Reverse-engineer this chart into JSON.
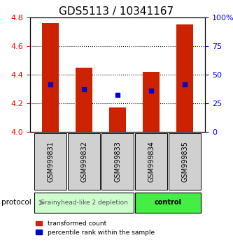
{
  "title": "GDS5113 / 10341167",
  "samples": [
    "GSM999831",
    "GSM999832",
    "GSM999833",
    "GSM999834",
    "GSM999835"
  ],
  "bar_bottoms": [
    4.0,
    4.0,
    4.0,
    4.0,
    4.0
  ],
  "bar_tops": [
    4.76,
    4.45,
    4.17,
    4.42,
    4.75
  ],
  "percentile_y": [
    4.33,
    4.3,
    4.26,
    4.29,
    4.33
  ],
  "percentile_x_offset": [
    0,
    0,
    0,
    0,
    0
  ],
  "ylim": [
    4.0,
    4.8
  ],
  "yticks": [
    4.0,
    4.2,
    4.4,
    4.6,
    4.8
  ],
  "right_yticks": [
    0,
    25,
    50,
    75,
    100
  ],
  "right_ytick_labels": [
    "0",
    "25",
    "50",
    "75",
    "100%"
  ],
  "bar_color": "#cc2200",
  "percentile_color": "#0000cc",
  "group1_samples": [
    0,
    1,
    2
  ],
  "group2_samples": [
    3,
    4
  ],
  "group1_label": "Grainyhead-like 2 depletion",
  "group2_label": "control",
  "group1_bg": "#ccffcc",
  "group2_bg": "#44ee44",
  "protocol_label": "protocol",
  "legend_red_label": "transformed count",
  "legend_blue_label": "percentile rank within the sample",
  "grid_color": "#000000",
  "bar_width": 0.5,
  "title_fontsize": 11,
  "tick_fontsize": 8,
  "sample_fontsize": 7
}
